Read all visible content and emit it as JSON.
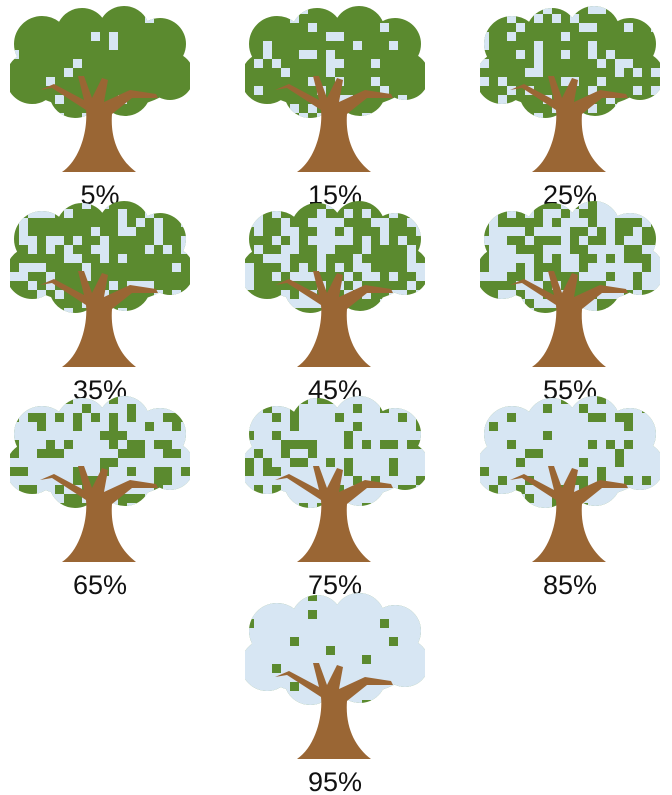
{
  "trees": [
    {
      "value": 5,
      "label": "5%"
    },
    {
      "value": 15,
      "label": "15%"
    },
    {
      "value": 25,
      "label": "25%"
    },
    {
      "value": 35,
      "label": "35%"
    },
    {
      "value": 45,
      "label": "45%"
    },
    {
      "value": 55,
      "label": "55%"
    },
    {
      "value": 65,
      "label": "65%"
    },
    {
      "value": 75,
      "label": "75%"
    },
    {
      "value": 85,
      "label": "85%"
    },
    {
      "value": 95,
      "label": "95%"
    }
  ]
}
